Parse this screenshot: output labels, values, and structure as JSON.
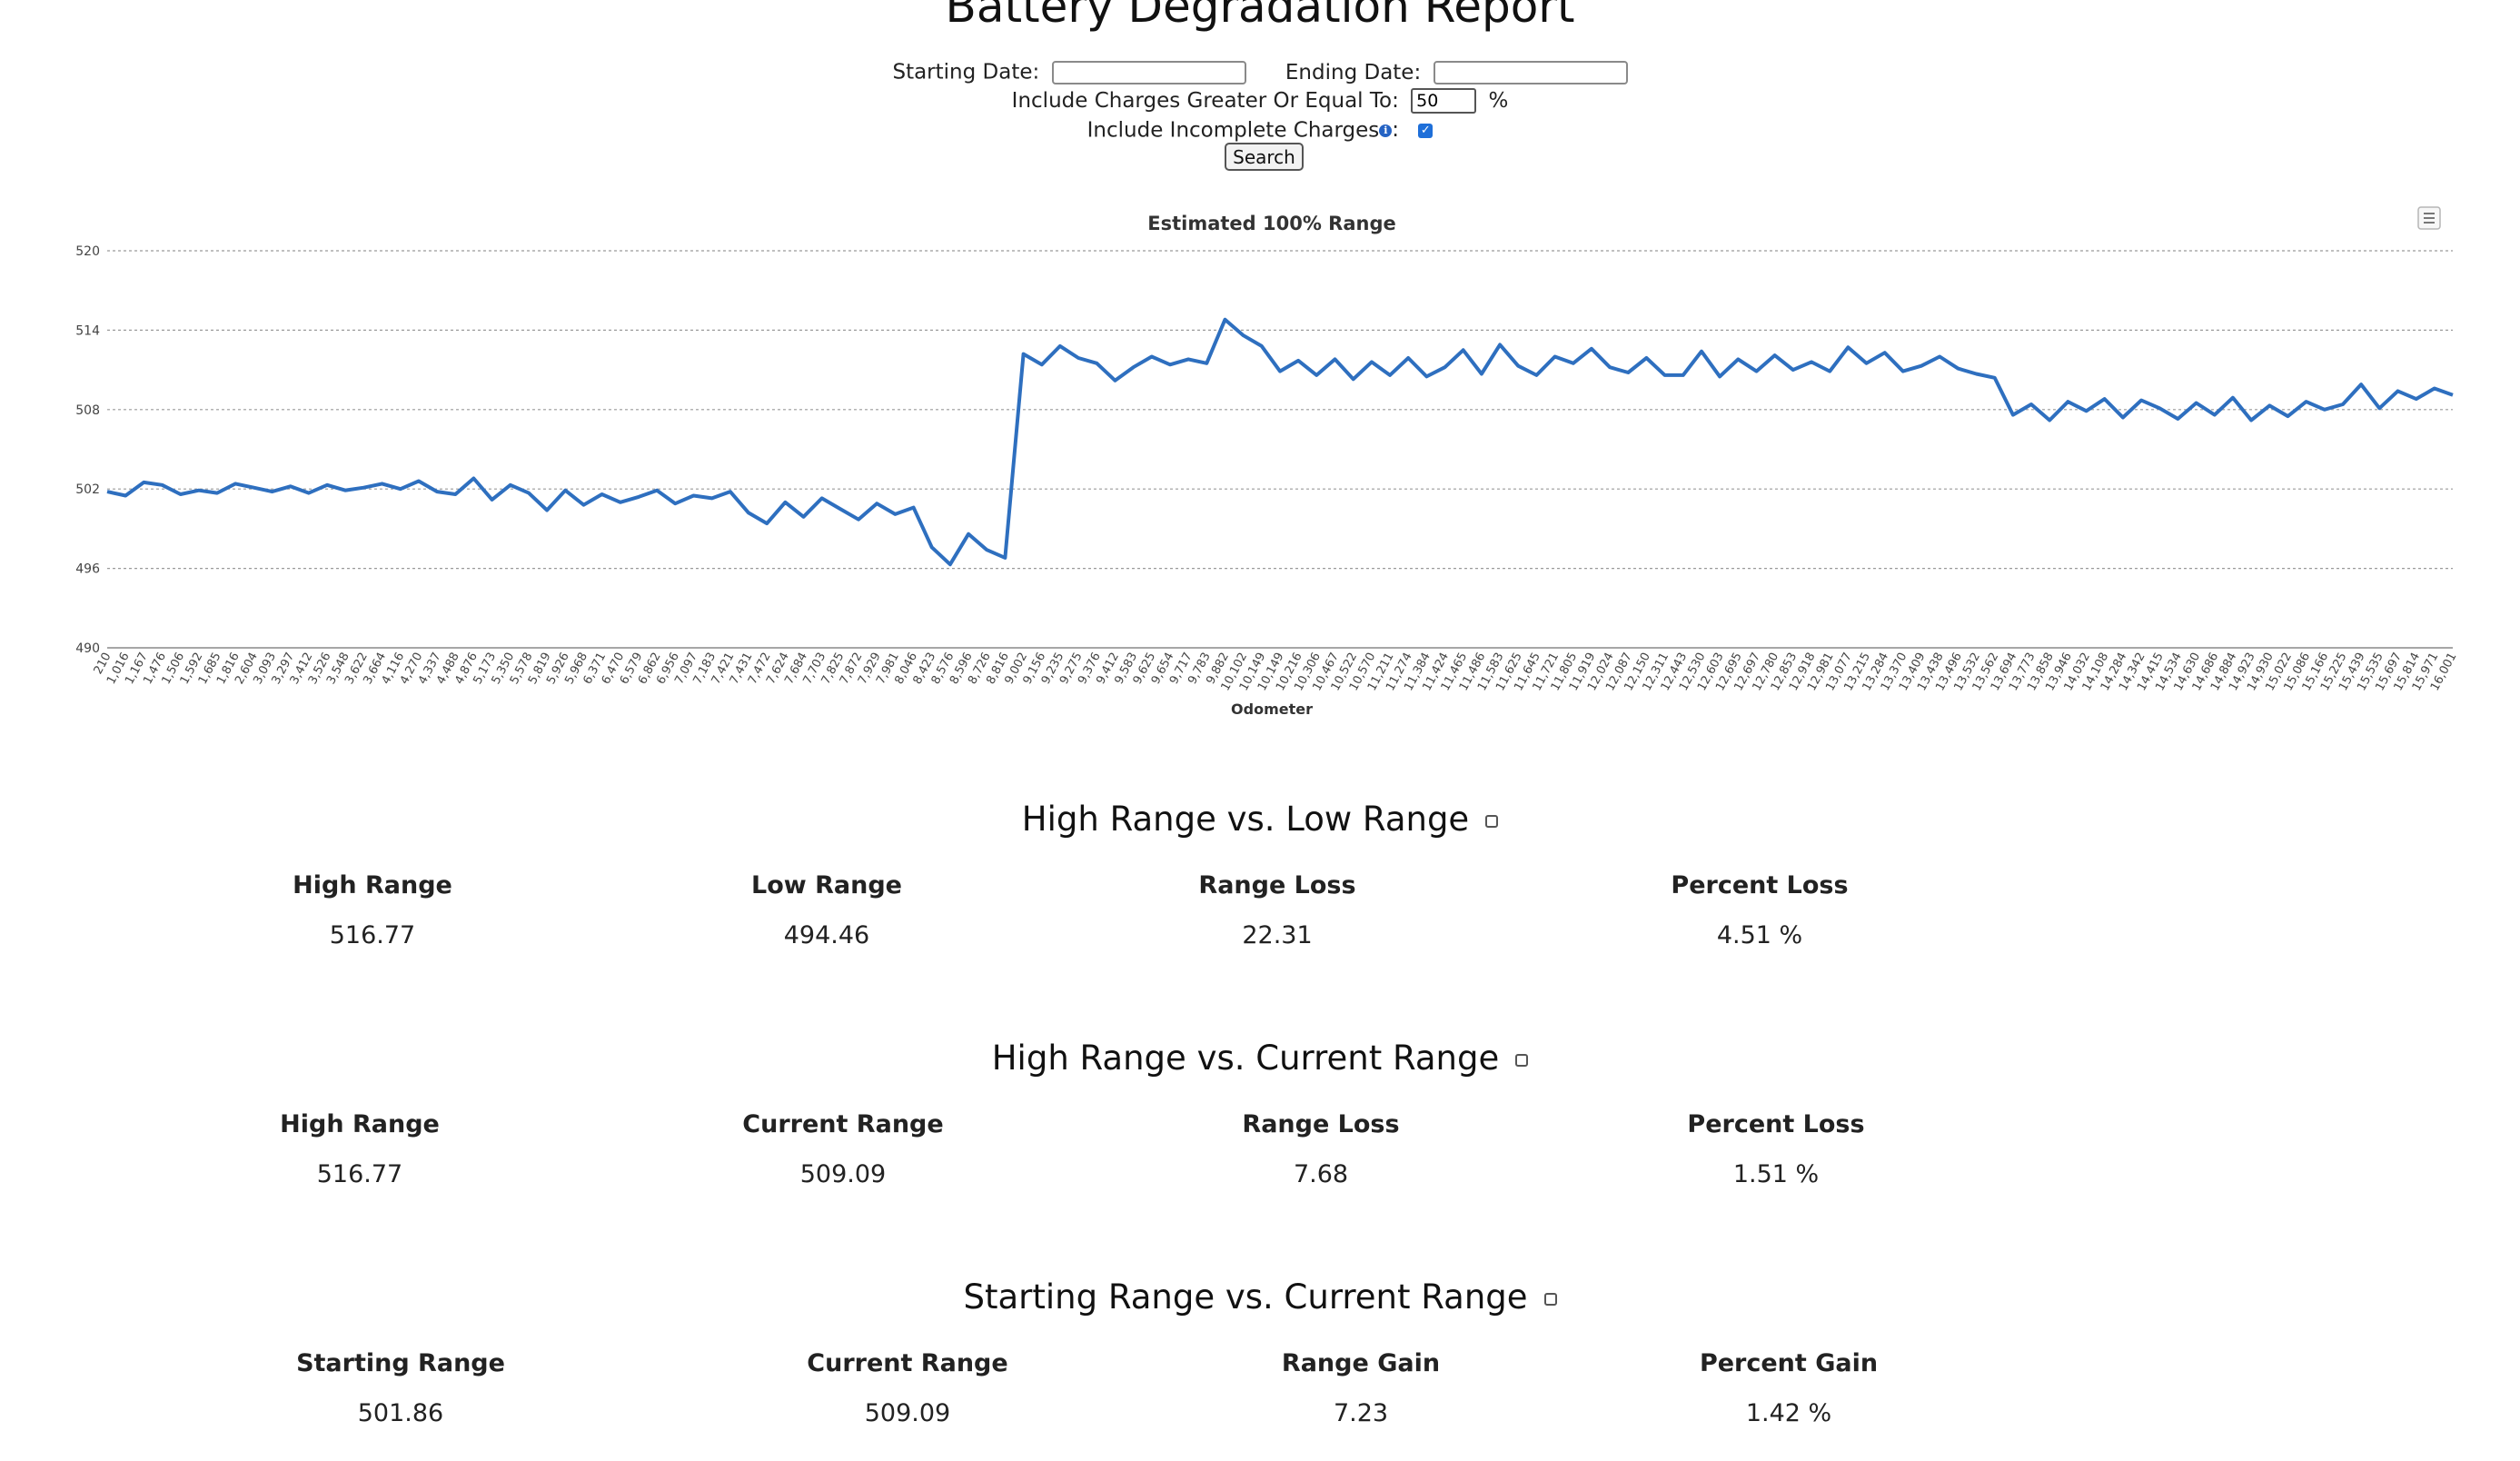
{
  "page": {
    "title": "Battery Degradation Report"
  },
  "filters": {
    "starting_date_label": "Starting Date:",
    "starting_date_value": "",
    "ending_date_label": "Ending Date:",
    "ending_date_value": "",
    "charges_label": "Include Charges Greater Or Equal To:",
    "charges_value": "50",
    "charges_unit": "%",
    "incomplete_label": "Include Incomplete Charges",
    "incomplete_colon": ":",
    "incomplete_checked": true,
    "search_label": "Search"
  },
  "chart_menu_icon": "hamburger-menu-icon",
  "chart_data": {
    "type": "line",
    "title": "Estimated 100% Range",
    "xlabel": "Odometer",
    "ylabel": "",
    "ylim": [
      490,
      520
    ],
    "yticks": [
      490,
      496,
      502,
      508,
      514,
      520
    ],
    "grid": true,
    "series_color": "#2e6fbf",
    "xtick_labels": [
      "210",
      "1,016",
      "1,167",
      "1,476",
      "1,506",
      "1,592",
      "1,685",
      "1,816",
      "2,604",
      "3,093",
      "3,297",
      "3,412",
      "3,526",
      "3,548",
      "3,622",
      "3,664",
      "4,116",
      "4,270",
      "4,337",
      "4,488",
      "4,876",
      "5,173",
      "5,350",
      "5,578",
      "5,819",
      "5,926",
      "5,968",
      "6,371",
      "6,470",
      "6,579",
      "6,862",
      "6,956",
      "7,097",
      "7,183",
      "7,421",
      "7,431",
      "7,472",
      "7,624",
      "7,684",
      "7,703",
      "7,825",
      "7,872",
      "7,929",
      "7,981",
      "8,046",
      "8,423",
      "8,576",
      "8,596",
      "8,726",
      "8,816",
      "9,002",
      "9,156",
      "9,235",
      "9,275",
      "9,376",
      "9,412",
      "9,583",
      "9,625",
      "9,654",
      "9,717",
      "9,783",
      "9,882",
      "10,102",
      "10,149",
      "10,149",
      "10,216",
      "10,306",
      "10,467",
      "10,522",
      "10,570",
      "11,211",
      "11,274",
      "11,384",
      "11,424",
      "11,465",
      "11,486",
      "11,583",
      "11,625",
      "11,645",
      "11,721",
      "11,805",
      "11,919",
      "12,024",
      "12,087",
      "12,150",
      "12,311",
      "12,443",
      "12,530",
      "12,603",
      "12,695",
      "12,697",
      "12,780",
      "12,853",
      "12,918",
      "12,981",
      "13,077",
      "13,215",
      "13,284",
      "13,370",
      "13,409",
      "13,438",
      "13,496",
      "13,532",
      "13,562",
      "13,694",
      "13,773",
      "13,858",
      "13,946",
      "14,032",
      "14,108",
      "14,284",
      "14,342",
      "14,415",
      "14,534",
      "14,630",
      "14,686",
      "14,884",
      "14,923",
      "14,930",
      "15,022",
      "15,086",
      "15,166",
      "15,225",
      "15,439",
      "15,535",
      "15,697",
      "15,814",
      "15,971",
      "16,001"
    ],
    "points": [
      {
        "x": "210",
        "y": 501.8
      },
      {
        "x": "1,016",
        "y": 501.5
      },
      {
        "x": "1,167",
        "y": 502.5
      },
      {
        "x": "1,476",
        "y": 502.3
      },
      {
        "x": "1,506",
        "y": 501.6
      },
      {
        "x": "1,592",
        "y": 501.9
      },
      {
        "x": "1,685",
        "y": 501.7
      },
      {
        "x": "1,816",
        "y": 502.4
      },
      {
        "x": "2,604",
        "y": 502.1
      },
      {
        "x": "3,093",
        "y": 501.8
      },
      {
        "x": "3,297",
        "y": 502.2
      },
      {
        "x": "3,412",
        "y": 501.7
      },
      {
        "x": "3,526",
        "y": 502.3
      },
      {
        "x": "3,548",
        "y": 501.9
      },
      {
        "x": "3,622",
        "y": 502.1
      },
      {
        "x": "3,664",
        "y": 502.4
      },
      {
        "x": "4,116",
        "y": 502.0
      },
      {
        "x": "4,270",
        "y": 502.6
      },
      {
        "x": "4,337",
        "y": 501.8
      },
      {
        "x": "4,488",
        "y": 501.6
      },
      {
        "x": "4,876",
        "y": 502.8
      },
      {
        "x": "5,173",
        "y": 501.2
      },
      {
        "x": "5,350",
        "y": 502.3
      },
      {
        "x": "5,578",
        "y": 501.7
      },
      {
        "x": "5,819",
        "y": 500.4
      },
      {
        "x": "5,926",
        "y": 501.9
      },
      {
        "x": "5,968",
        "y": 500.8
      },
      {
        "x": "6,371",
        "y": 501.6
      },
      {
        "x": "6,470",
        "y": 501.0
      },
      {
        "x": "6,579",
        "y": 501.4
      },
      {
        "x": "6,862",
        "y": 501.9
      },
      {
        "x": "6,956",
        "y": 500.9
      },
      {
        "x": "7,097",
        "y": 501.5
      },
      {
        "x": "7,183",
        "y": 501.3
      },
      {
        "x": "7,421",
        "y": 501.8
      },
      {
        "x": "7,431",
        "y": 500.2
      },
      {
        "x": "7,472",
        "y": 499.4
      },
      {
        "x": "7,624",
        "y": 501.0
      },
      {
        "x": "7,684",
        "y": 499.9
      },
      {
        "x": "7,703",
        "y": 501.3
      },
      {
        "x": "7,825",
        "y": 500.5
      },
      {
        "x": "7,872",
        "y": 499.7
      },
      {
        "x": "7,929",
        "y": 500.9
      },
      {
        "x": "7,981",
        "y": 500.1
      },
      {
        "x": "8,046",
        "y": 500.6
      },
      {
        "x": "8,423",
        "y": 497.6
      },
      {
        "x": "8,576",
        "y": 496.3
      },
      {
        "x": "8,596",
        "y": 498.6
      },
      {
        "x": "8,726",
        "y": 497.4
      },
      {
        "x": "8,816",
        "y": 496.8
      },
      {
        "x": "9,002",
        "y": 512.2
      },
      {
        "x": "9,156",
        "y": 511.4
      },
      {
        "x": "9,235",
        "y": 512.8
      },
      {
        "x": "9,275",
        "y": 511.9
      },
      {
        "x": "9,376",
        "y": 511.5
      },
      {
        "x": "9,412",
        "y": 510.2
      },
      {
        "x": "9,583",
        "y": 511.2
      },
      {
        "x": "9,625",
        "y": 512.0
      },
      {
        "x": "9,654",
        "y": 511.4
      },
      {
        "x": "9,717",
        "y": 511.8
      },
      {
        "x": "9,783",
        "y": 511.5
      },
      {
        "x": "9,882",
        "y": 514.8
      },
      {
        "x": "10,102",
        "y": 513.6
      },
      {
        "x": "10,149",
        "y": 512.8
      },
      {
        "x": "10,149",
        "y": 510.9
      },
      {
        "x": "10,216",
        "y": 511.7
      },
      {
        "x": "10,306",
        "y": 510.6
      },
      {
        "x": "10,467",
        "y": 511.8
      },
      {
        "x": "10,522",
        "y": 510.3
      },
      {
        "x": "10,570",
        "y": 511.6
      },
      {
        "x": "11,211",
        "y": 510.6
      },
      {
        "x": "11,274",
        "y": 511.9
      },
      {
        "x": "11,384",
        "y": 510.5
      },
      {
        "x": "11,424",
        "y": 511.2
      },
      {
        "x": "11,465",
        "y": 512.5
      },
      {
        "x": "11,486",
        "y": 510.7
      },
      {
        "x": "11,583",
        "y": 512.9
      },
      {
        "x": "11,625",
        "y": 511.3
      },
      {
        "x": "11,645",
        "y": 510.6
      },
      {
        "x": "11,721",
        "y": 512.0
      },
      {
        "x": "11,805",
        "y": 511.5
      },
      {
        "x": "11,919",
        "y": 512.6
      },
      {
        "x": "12,024",
        "y": 511.2
      },
      {
        "x": "12,087",
        "y": 510.8
      },
      {
        "x": "12,150",
        "y": 511.9
      },
      {
        "x": "12,311",
        "y": 510.6
      },
      {
        "x": "12,443",
        "y": 510.6
      },
      {
        "x": "12,530",
        "y": 512.4
      },
      {
        "x": "12,603",
        "y": 510.5
      },
      {
        "x": "12,695",
        "y": 511.8
      },
      {
        "x": "12,697",
        "y": 510.9
      },
      {
        "x": "12,780",
        "y": 512.1
      },
      {
        "x": "12,853",
        "y": 511.0
      },
      {
        "x": "12,918",
        "y": 511.6
      },
      {
        "x": "12,981",
        "y": 510.9
      },
      {
        "x": "13,077",
        "y": 512.7
      },
      {
        "x": "13,215",
        "y": 511.5
      },
      {
        "x": "13,284",
        "y": 512.3
      },
      {
        "x": "13,370",
        "y": 510.9
      },
      {
        "x": "13,409",
        "y": 511.3
      },
      {
        "x": "13,438",
        "y": 512.0
      },
      {
        "x": "13,496",
        "y": 511.1
      },
      {
        "x": "13,532",
        "y": 510.7
      },
      {
        "x": "13,562",
        "y": 510.4
      },
      {
        "x": "13,694",
        "y": 507.6
      },
      {
        "x": "13,773",
        "y": 508.4
      },
      {
        "x": "13,858",
        "y": 507.2
      },
      {
        "x": "13,946",
        "y": 508.6
      },
      {
        "x": "14,032",
        "y": 507.9
      },
      {
        "x": "14,108",
        "y": 508.8
      },
      {
        "x": "14,284",
        "y": 507.4
      },
      {
        "x": "14,342",
        "y": 508.7
      },
      {
        "x": "14,415",
        "y": 508.1
      },
      {
        "x": "14,534",
        "y": 507.3
      },
      {
        "x": "14,630",
        "y": 508.5
      },
      {
        "x": "14,686",
        "y": 507.6
      },
      {
        "x": "14,884",
        "y": 508.9
      },
      {
        "x": "14,923",
        "y": 507.2
      },
      {
        "x": "14,930",
        "y": 508.3
      },
      {
        "x": "15,022",
        "y": 507.5
      },
      {
        "x": "15,086",
        "y": 508.6
      },
      {
        "x": "15,166",
        "y": 508.0
      },
      {
        "x": "15,225",
        "y": 508.4
      },
      {
        "x": "15,439",
        "y": 509.9
      },
      {
        "x": "15,535",
        "y": 508.1
      },
      {
        "x": "15,697",
        "y": 509.4
      },
      {
        "x": "15,814",
        "y": 508.8
      },
      {
        "x": "15,971",
        "y": 509.6
      },
      {
        "x": "16,001",
        "y": 509.1
      }
    ]
  },
  "sections": [
    {
      "title": "High Range vs. Low Range",
      "columns": [
        {
          "head": "High Range",
          "value": "516.77"
        },
        {
          "head": "Low Range",
          "value": "494.46"
        },
        {
          "head": "Range Loss",
          "value": "22.31"
        },
        {
          "head": "Percent Loss",
          "value": "4.51 %"
        }
      ]
    },
    {
      "title": "High Range vs. Current Range",
      "columns": [
        {
          "head": "High Range",
          "value": "516.77"
        },
        {
          "head": "Current Range",
          "value": "509.09"
        },
        {
          "head": "Range Loss",
          "value": "7.68"
        },
        {
          "head": "Percent Loss",
          "value": "1.51 %"
        }
      ]
    },
    {
      "title": "Starting Range vs. Current Range",
      "columns": [
        {
          "head": "Starting Range",
          "value": "501.86"
        },
        {
          "head": "Current Range",
          "value": "509.09"
        },
        {
          "head": "Range Gain",
          "value": "7.23"
        },
        {
          "head": "Percent Gain",
          "value": "1.42 %"
        }
      ]
    }
  ]
}
